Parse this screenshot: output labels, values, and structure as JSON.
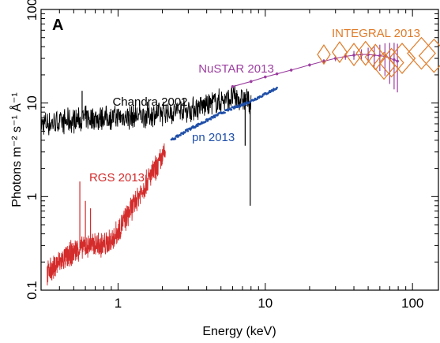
{
  "chart_data": {
    "type": "line",
    "panel_label": "A",
    "xlabel": "Energy (keV)",
    "ylabel": "Photons m⁻² s⁻¹ Å⁻¹",
    "x_scale": "log",
    "y_scale": "log",
    "xlim": [
      0.3,
      150
    ],
    "ylim": [
      0.1,
      100
    ],
    "x_ticks": [
      {
        "value": 1,
        "label": "1"
      },
      {
        "value": 10,
        "label": "10"
      },
      {
        "value": 100,
        "label": "100"
      }
    ],
    "y_ticks": [
      {
        "value": 0.1,
        "label": "0.1"
      },
      {
        "value": 1,
        "label": "1"
      },
      {
        "value": 10,
        "label": "10"
      },
      {
        "value": 100,
        "label": "100"
      }
    ],
    "grid": false,
    "series": [
      {
        "name": "Chandra 2002",
        "color": "#000000",
        "style": "noisy-line",
        "x": [
          0.3,
          0.4,
          0.5,
          0.6,
          0.8,
          1.0,
          1.5,
          2.0,
          3.0,
          4.0,
          5.0,
          6.0,
          7.0,
          8.0
        ],
        "y": [
          6.0,
          6.2,
          6.5,
          6.8,
          7.0,
          7.0,
          7.3,
          7.8,
          8.5,
          9.5,
          10.5,
          11.5,
          11.0,
          10.0
        ],
        "features": [
          {
            "x": 0.57,
            "y": 13.5
          },
          {
            "x": 7.3,
            "y": 3.5
          },
          {
            "x": 7.9,
            "y": 0.8
          }
        ]
      },
      {
        "name": "pn 2013",
        "color": "#1f4fa8",
        "style": "line",
        "x": [
          2.3,
          3.0,
          4.0,
          5.0,
          6.0,
          7.0,
          8.0,
          10.0,
          12.0
        ],
        "y": [
          4.0,
          5.2,
          6.5,
          7.8,
          8.8,
          9.6,
          10.5,
          12.5,
          14.5
        ]
      },
      {
        "name": "RGS 2013",
        "color": "#d42b2b",
        "style": "noisy-line",
        "x": [
          0.33,
          0.4,
          0.5,
          0.6,
          0.7,
          0.8,
          0.9,
          1.0,
          1.2,
          1.4,
          1.6,
          1.8,
          2.0,
          2.1
        ],
        "y": [
          0.15,
          0.2,
          0.26,
          0.3,
          0.3,
          0.3,
          0.34,
          0.42,
          0.7,
          1.05,
          1.5,
          2.0,
          2.6,
          3.0
        ],
        "features": [
          {
            "x": 0.55,
            "y": 1.45
          },
          {
            "x": 0.6,
            "y": 0.9
          },
          {
            "x": 0.65,
            "y": 0.75
          }
        ]
      },
      {
        "name": "NuSTAR 2013",
        "color": "#9c3fa0",
        "style": "errorbars",
        "x": [
          6,
          8,
          10,
          12,
          15,
          20,
          25,
          30,
          35,
          40,
          45,
          50,
          55,
          60,
          65,
          70,
          75,
          79
        ],
        "y": [
          15,
          17,
          19,
          20.5,
          22.5,
          25.5,
          28,
          30,
          31.5,
          32.5,
          33,
          33,
          32.5,
          32,
          31.5,
          30,
          29,
          28
        ],
        "yerr": [
          0.5,
          0.6,
          0.6,
          0.7,
          0.8,
          1.0,
          1.5,
          2.0,
          2.5,
          3.5,
          4.5,
          6,
          8,
          10,
          12,
          14,
          15,
          15
        ]
      },
      {
        "name": "INTEGRAL 2013",
        "color": "#e07b28",
        "style": "diamonds",
        "x": [
          25,
          32,
          40,
          48,
          56,
          64,
          72,
          85,
          115,
          140
        ],
        "y": [
          33,
          35,
          33,
          34,
          31,
          25,
          27,
          30,
          34,
          32
        ]
      }
    ]
  }
}
